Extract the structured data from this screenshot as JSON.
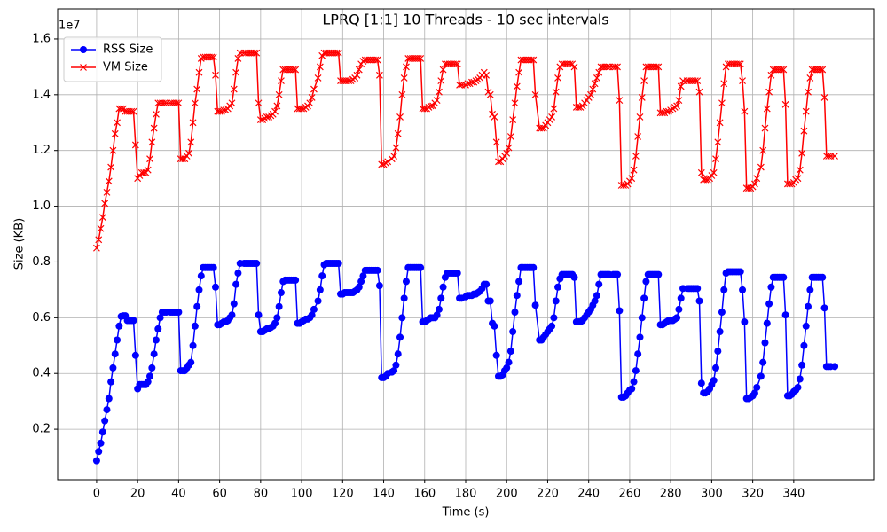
{
  "chart_data": {
    "type": "line",
    "title": "LPRQ [1:1] 10 Threads - 10 sec intervals",
    "x_label": "Time (s)",
    "y_label": "Size (KB)",
    "y_offset_label": "1e7",
    "legend": "upper left",
    "grid": true,
    "xlim": [
      -19,
      379
    ],
    "ylim": [
      0.019,
      1.708
    ],
    "xticks": [
      0,
      20,
      40,
      60,
      80,
      100,
      120,
      140,
      160,
      180,
      200,
      220,
      240,
      260,
      280,
      300,
      320,
      340
    ],
    "yticks": [
      0.2,
      0.4,
      0.6,
      0.8,
      {
        "value": 1,
        "label": "1.0"
      },
      1.2,
      1.4,
      1.6
    ],
    "x": [
      0,
      1,
      2,
      3,
      4,
      5,
      6,
      7,
      8,
      9,
      10,
      11,
      12,
      13,
      14,
      15,
      16,
      17,
      18,
      19,
      20,
      21,
      22,
      23,
      24,
      25,
      26,
      27,
      28,
      29,
      30,
      31,
      32,
      33,
      34,
      36,
      37,
      38,
      39,
      40,
      41,
      42,
      43,
      44,
      45,
      46,
      47,
      48,
      49,
      50,
      51,
      52,
      53,
      54,
      55,
      56,
      57,
      58,
      59,
      60,
      61,
      62,
      63,
      64,
      65,
      66,
      67,
      68,
      69,
      70,
      72,
      73,
      74,
      75,
      76,
      77,
      78,
      79,
      80,
      81,
      82,
      83,
      84,
      85,
      86,
      87,
      88,
      89,
      90,
      91,
      92,
      93,
      94,
      95,
      96,
      97,
      98,
      99,
      100,
      101,
      102,
      103,
      104,
      105,
      106,
      108,
      109,
      110,
      111,
      112,
      113,
      114,
      115,
      116,
      117,
      118,
      119,
      120,
      121,
      122,
      123,
      124,
      125,
      126,
      127,
      128,
      129,
      130,
      131,
      132,
      133,
      134,
      135,
      136,
      137,
      138,
      139,
      140,
      141,
      142,
      144,
      145,
      146,
      147,
      148,
      149,
      150,
      151,
      152,
      153,
      154,
      155,
      156,
      157,
      158,
      159,
      160,
      161,
      162,
      163,
      164,
      165,
      166,
      167,
      168,
      169,
      170,
      171,
      172,
      173,
      174,
      175,
      176,
      177,
      178,
      180,
      181,
      182,
      183,
      184,
      185,
      186,
      187,
      188,
      189,
      190,
      191,
      192,
      193,
      194,
      195,
      196,
      197,
      198,
      199,
      200,
      201,
      202,
      203,
      204,
      205,
      206,
      207,
      208,
      209,
      210,
      211,
      212,
      213,
      214,
      216,
      217,
      218,
      219,
      220,
      221,
      222,
      223,
      224,
      225,
      226,
      227,
      228,
      229,
      230,
      231,
      232,
      233,
      234,
      235,
      236,
      237,
      238,
      239,
      240,
      241,
      242,
      243,
      244,
      245,
      246,
      247,
      248,
      249,
      250,
      252,
      253,
      254,
      255,
      256,
      257,
      258,
      259,
      260,
      261,
      262,
      263,
      264,
      265,
      266,
      267,
      268,
      269,
      270,
      271,
      272,
      273,
      274,
      275,
      276,
      277,
      278,
      279,
      280,
      281,
      282,
      283,
      284,
      285,
      286,
      288,
      289,
      290,
      291,
      292,
      293,
      294,
      295,
      296,
      297,
      298,
      299,
      300,
      301,
      302,
      303,
      304,
      305,
      306,
      307,
      308,
      309,
      310,
      311,
      312,
      313,
      314,
      315,
      316,
      317,
      318,
      319,
      320,
      321,
      322,
      324,
      325,
      326,
      327,
      328,
      329,
      330,
      331,
      332,
      333,
      334,
      335,
      336,
      337,
      338,
      339,
      340,
      341,
      342,
      343,
      344,
      345,
      346,
      347,
      348,
      349,
      350,
      351,
      352,
      353,
      354,
      355,
      356,
      357,
      358,
      360
    ],
    "series": [
      {
        "name": "RSS Size",
        "color": "#0000ff",
        "marker": "circle",
        "values": [
          0.087,
          0.12,
          0.15,
          0.19,
          0.23,
          0.27,
          0.31,
          0.37,
          0.42,
          0.47,
          0.52,
          0.57,
          0.605,
          0.607,
          0.607,
          0.59,
          0.59,
          0.59,
          0.59,
          0.465,
          0.345,
          0.36,
          0.36,
          0.36,
          0.36,
          0.37,
          0.39,
          0.42,
          0.47,
          0.52,
          0.56,
          0.6,
          0.62,
          0.62,
          0.62,
          0.62,
          0.62,
          0.62,
          0.62,
          0.62,
          0.41,
          0.41,
          0.41,
          0.42,
          0.43,
          0.44,
          0.5,
          0.57,
          0.64,
          0.7,
          0.75,
          0.78,
          0.78,
          0.78,
          0.78,
          0.78,
          0.78,
          0.71,
          0.575,
          0.575,
          0.58,
          0.585,
          0.585,
          0.59,
          0.6,
          0.61,
          0.65,
          0.72,
          0.76,
          0.795,
          0.795,
          0.795,
          0.795,
          0.795,
          0.795,
          0.795,
          0.795,
          0.61,
          0.55,
          0.55,
          0.555,
          0.56,
          0.56,
          0.565,
          0.57,
          0.58,
          0.6,
          0.64,
          0.69,
          0.73,
          0.735,
          0.735,
          0.735,
          0.735,
          0.735,
          0.735,
          0.58,
          0.58,
          0.585,
          0.59,
          0.595,
          0.595,
          0.6,
          0.61,
          0.63,
          0.66,
          0.7,
          0.75,
          0.79,
          0.795,
          0.795,
          0.795,
          0.795,
          0.795,
          0.795,
          0.795,
          0.685,
          0.685,
          0.69,
          0.69,
          0.69,
          0.69,
          0.69,
          0.695,
          0.7,
          0.71,
          0.73,
          0.75,
          0.77,
          0.77,
          0.77,
          0.77,
          0.77,
          0.77,
          0.77,
          0.715,
          0.385,
          0.385,
          0.39,
          0.4,
          0.405,
          0.41,
          0.43,
          0.47,
          0.53,
          0.6,
          0.67,
          0.73,
          0.78,
          0.78,
          0.78,
          0.78,
          0.78,
          0.78,
          0.78,
          0.585,
          0.585,
          0.59,
          0.595,
          0.6,
          0.6,
          0.6,
          0.61,
          0.63,
          0.67,
          0.71,
          0.745,
          0.76,
          0.76,
          0.76,
          0.76,
          0.76,
          0.76,
          0.67,
          0.67,
          0.675,
          0.68,
          0.68,
          0.68,
          0.685,
          0.685,
          0.69,
          0.695,
          0.705,
          0.72,
          0.72,
          0.66,
          0.66,
          0.58,
          0.57,
          0.465,
          0.39,
          0.39,
          0.395,
          0.41,
          0.42,
          0.44,
          0.48,
          0.55,
          0.62,
          0.68,
          0.73,
          0.78,
          0.78,
          0.78,
          0.78,
          0.78,
          0.78,
          0.78,
          0.645,
          0.52,
          0.52,
          0.53,
          0.54,
          0.55,
          0.56,
          0.57,
          0.6,
          0.66,
          0.71,
          0.74,
          0.755,
          0.755,
          0.755,
          0.755,
          0.755,
          0.755,
          0.745,
          0.585,
          0.585,
          0.585,
          0.59,
          0.6,
          0.61,
          0.62,
          0.63,
          0.645,
          0.66,
          0.68,
          0.72,
          0.755,
          0.755,
          0.755,
          0.755,
          0.755,
          0.755,
          0.755,
          0.755,
          0.625,
          0.315,
          0.315,
          0.32,
          0.33,
          0.34,
          0.345,
          0.37,
          0.41,
          0.47,
          0.53,
          0.6,
          0.67,
          0.73,
          0.755,
          0.755,
          0.755,
          0.755,
          0.755,
          0.755,
          0.575,
          0.575,
          0.58,
          0.585,
          0.59,
          0.59,
          0.59,
          0.595,
          0.6,
          0.63,
          0.67,
          0.705,
          0.705,
          0.705,
          0.705,
          0.705,
          0.705,
          0.705,
          0.66,
          0.365,
          0.33,
          0.33,
          0.335,
          0.345,
          0.36,
          0.375,
          0.42,
          0.48,
          0.55,
          0.62,
          0.7,
          0.76,
          0.765,
          0.765,
          0.765,
          0.765,
          0.765,
          0.765,
          0.765,
          0.7,
          0.585,
          0.31,
          0.31,
          0.315,
          0.32,
          0.33,
          0.35,
          0.39,
          0.44,
          0.51,
          0.58,
          0.65,
          0.71,
          0.745,
          0.745,
          0.745,
          0.745,
          0.745,
          0.745,
          0.61,
          0.32,
          0.32,
          0.325,
          0.335,
          0.34,
          0.35,
          0.38,
          0.43,
          0.5,
          0.57,
          0.64,
          0.7,
          0.745,
          0.745,
          0.745,
          0.745,
          0.745,
          0.745,
          0.635,
          0.425,
          0.425,
          0.425,
          0.425
        ]
      },
      {
        "name": "VM Size",
        "color": "#ff0000",
        "marker": "x",
        "values": [
          0.85,
          0.88,
          0.92,
          0.96,
          1.01,
          1.05,
          1.09,
          1.14,
          1.2,
          1.26,
          1.3,
          1.35,
          1.35,
          1.35,
          1.34,
          1.34,
          1.34,
          1.34,
          1.34,
          1.22,
          1.1,
          1.11,
          1.12,
          1.12,
          1.12,
          1.13,
          1.17,
          1.23,
          1.28,
          1.33,
          1.37,
          1.37,
          1.37,
          1.37,
          1.37,
          1.37,
          1.37,
          1.37,
          1.37,
          1.37,
          1.17,
          1.17,
          1.17,
          1.18,
          1.19,
          1.23,
          1.3,
          1.37,
          1.42,
          1.48,
          1.53,
          1.535,
          1.535,
          1.535,
          1.535,
          1.535,
          1.535,
          1.47,
          1.34,
          1.34,
          1.34,
          1.345,
          1.345,
          1.35,
          1.36,
          1.37,
          1.42,
          1.48,
          1.53,
          1.55,
          1.55,
          1.55,
          1.55,
          1.55,
          1.55,
          1.55,
          1.55,
          1.37,
          1.31,
          1.31,
          1.315,
          1.32,
          1.32,
          1.325,
          1.33,
          1.34,
          1.36,
          1.4,
          1.45,
          1.49,
          1.49,
          1.49,
          1.49,
          1.49,
          1.49,
          1.49,
          1.35,
          1.35,
          1.35,
          1.35,
          1.355,
          1.36,
          1.37,
          1.39,
          1.42,
          1.46,
          1.5,
          1.54,
          1.55,
          1.55,
          1.55,
          1.55,
          1.55,
          1.55,
          1.55,
          1.55,
          1.45,
          1.45,
          1.45,
          1.45,
          1.45,
          1.45,
          1.455,
          1.46,
          1.47,
          1.49,
          1.51,
          1.52,
          1.525,
          1.525,
          1.525,
          1.525,
          1.525,
          1.525,
          1.525,
          1.47,
          1.15,
          1.15,
          1.155,
          1.16,
          1.17,
          1.18,
          1.21,
          1.26,
          1.32,
          1.4,
          1.46,
          1.5,
          1.53,
          1.53,
          1.53,
          1.53,
          1.53,
          1.53,
          1.53,
          1.35,
          1.35,
          1.35,
          1.355,
          1.36,
          1.36,
          1.37,
          1.38,
          1.41,
          1.45,
          1.49,
          1.51,
          1.51,
          1.51,
          1.51,
          1.51,
          1.51,
          1.51,
          1.435,
          1.435,
          1.435,
          1.44,
          1.44,
          1.445,
          1.445,
          1.45,
          1.455,
          1.46,
          1.47,
          1.48,
          1.47,
          1.41,
          1.4,
          1.33,
          1.32,
          1.23,
          1.16,
          1.16,
          1.17,
          1.18,
          1.19,
          1.21,
          1.25,
          1.31,
          1.37,
          1.43,
          1.48,
          1.525,
          1.525,
          1.525,
          1.525,
          1.525,
          1.525,
          1.525,
          1.4,
          1.28,
          1.28,
          1.28,
          1.29,
          1.3,
          1.31,
          1.32,
          1.35,
          1.41,
          1.46,
          1.5,
          1.51,
          1.51,
          1.51,
          1.51,
          1.51,
          1.51,
          1.5,
          1.355,
          1.355,
          1.355,
          1.36,
          1.37,
          1.38,
          1.39,
          1.4,
          1.42,
          1.44,
          1.46,
          1.48,
          1.5,
          1.5,
          1.5,
          1.5,
          1.5,
          1.5,
          1.5,
          1.5,
          1.38,
          1.075,
          1.075,
          1.075,
          1.08,
          1.09,
          1.1,
          1.13,
          1.18,
          1.25,
          1.32,
          1.39,
          1.45,
          1.5,
          1.5,
          1.5,
          1.5,
          1.5,
          1.5,
          1.5,
          1.335,
          1.335,
          1.335,
          1.34,
          1.34,
          1.345,
          1.35,
          1.355,
          1.36,
          1.38,
          1.43,
          1.45,
          1.45,
          1.45,
          1.45,
          1.45,
          1.45,
          1.45,
          1.41,
          1.12,
          1.095,
          1.095,
          1.095,
          1.1,
          1.11,
          1.12,
          1.17,
          1.23,
          1.3,
          1.37,
          1.44,
          1.5,
          1.51,
          1.51,
          1.51,
          1.51,
          1.51,
          1.51,
          1.51,
          1.45,
          1.34,
          1.065,
          1.065,
          1.065,
          1.07,
          1.08,
          1.1,
          1.14,
          1.2,
          1.28,
          1.35,
          1.41,
          1.47,
          1.49,
          1.49,
          1.49,
          1.49,
          1.49,
          1.49,
          1.365,
          1.08,
          1.08,
          1.08,
          1.085,
          1.095,
          1.1,
          1.13,
          1.19,
          1.27,
          1.34,
          1.41,
          1.46,
          1.49,
          1.49,
          1.49,
          1.49,
          1.49,
          1.49,
          1.39,
          1.18,
          1.18,
          1.18,
          1.18
        ]
      }
    ]
  }
}
